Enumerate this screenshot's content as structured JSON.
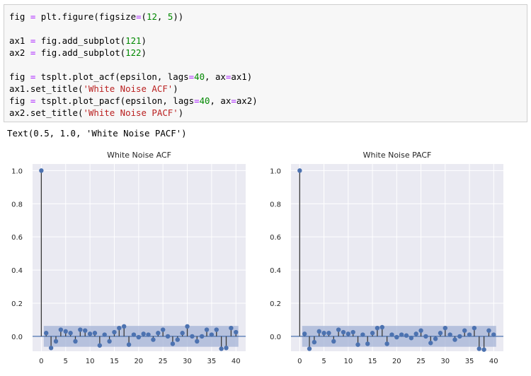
{
  "code_cell": {
    "lines": [
      [
        {
          "t": "fig "
        },
        {
          "t": "=",
          "c": "op"
        },
        {
          "t": " plt.figure(figsize"
        },
        {
          "t": "=",
          "c": "op"
        },
        {
          "t": "("
        },
        {
          "t": "12",
          "c": "num"
        },
        {
          "t": ", "
        },
        {
          "t": "5",
          "c": "num"
        },
        {
          "t": "))"
        }
      ],
      [],
      [
        {
          "t": "ax1 "
        },
        {
          "t": "=",
          "c": "op"
        },
        {
          "t": " fig.add_subplot("
        },
        {
          "t": "121",
          "c": "num"
        },
        {
          "t": ")"
        }
      ],
      [
        {
          "t": "ax2 "
        },
        {
          "t": "=",
          "c": "op"
        },
        {
          "t": " fig.add_subplot("
        },
        {
          "t": "122",
          "c": "num"
        },
        {
          "t": ")"
        }
      ],
      [],
      [
        {
          "t": "fig "
        },
        {
          "t": "=",
          "c": "op"
        },
        {
          "t": " tsplt.plot_acf(epsilon, lags"
        },
        {
          "t": "=",
          "c": "op"
        },
        {
          "t": "40",
          "c": "num"
        },
        {
          "t": ", ax"
        },
        {
          "t": "=",
          "c": "op"
        },
        {
          "t": "ax1)"
        }
      ],
      [
        {
          "t": "ax1.set_title("
        },
        {
          "t": "'White Noise ACF'",
          "c": "str"
        },
        {
          "t": ")"
        }
      ],
      [
        {
          "t": "fig "
        },
        {
          "t": "=",
          "c": "op"
        },
        {
          "t": " tsplt.plot_pacf(epsilon, lags"
        },
        {
          "t": "=",
          "c": "op"
        },
        {
          "t": "40",
          "c": "num"
        },
        {
          "t": ", ax"
        },
        {
          "t": "=",
          "c": "op"
        },
        {
          "t": "ax2)"
        }
      ],
      [
        {
          "t": "ax2.set_title("
        },
        {
          "t": "'White Noise PACF'",
          "c": "str"
        },
        {
          "t": ")"
        }
      ]
    ]
  },
  "output": {
    "text": "Text(0.5, 1.0, 'White Noise PACF')"
  },
  "colors": {
    "axes_bg": "#eaeaf2",
    "grid": "#ffffff",
    "marker": "#4c72b0",
    "stem": "#3a3a3a",
    "band": "#a4b3d6",
    "zero_line": "#4c72b0"
  },
  "chart_data": [
    {
      "type": "scatter",
      "title": "White Noise ACF",
      "xlabel": "",
      "ylabel": "",
      "x_ticks": [
        0,
        5,
        10,
        15,
        20,
        25,
        30,
        35,
        40
      ],
      "y_ticks": [
        "0.0",
        "0.2",
        "0.4",
        "0.6",
        "0.8",
        "1.0"
      ],
      "xlim": [
        -1.8,
        42
      ],
      "ylim": [
        -0.09,
        1.04
      ],
      "grid": true,
      "confidence_band": 0.063,
      "lags": [
        0,
        1,
        2,
        3,
        4,
        5,
        6,
        7,
        8,
        9,
        10,
        11,
        12,
        13,
        14,
        15,
        16,
        17,
        18,
        19,
        20,
        21,
        22,
        23,
        24,
        25,
        26,
        27,
        28,
        29,
        30,
        31,
        32,
        33,
        34,
        35,
        36,
        37,
        38,
        39,
        40
      ],
      "values": [
        1.0,
        0.02,
        -0.07,
        -0.03,
        0.04,
        0.03,
        0.02,
        -0.03,
        0.04,
        0.035,
        0.015,
        0.02,
        -0.055,
        0.01,
        -0.03,
        0.025,
        0.05,
        0.06,
        -0.05,
        0.01,
        -0.005,
        0.015,
        0.01,
        -0.02,
        0.02,
        0.04,
        0.0,
        -0.045,
        -0.02,
        0.02,
        0.06,
        0.0,
        -0.03,
        0.0,
        0.04,
        0.01,
        0.04,
        -0.075,
        -0.07,
        0.05,
        0.025
      ]
    },
    {
      "type": "scatter",
      "title": "White Noise PACF",
      "xlabel": "",
      "ylabel": "",
      "x_ticks": [
        0,
        5,
        10,
        15,
        20,
        25,
        30,
        35,
        40
      ],
      "y_ticks": [
        "0.0",
        "0.2",
        "0.4",
        "0.6",
        "0.8",
        "1.0"
      ],
      "xlim": [
        -1.8,
        42
      ],
      "ylim": [
        -0.09,
        1.04
      ],
      "grid": true,
      "confidence_band": 0.063,
      "lags": [
        0,
        1,
        2,
        3,
        4,
        5,
        6,
        7,
        8,
        9,
        10,
        11,
        12,
        13,
        14,
        15,
        16,
        17,
        18,
        19,
        20,
        21,
        22,
        23,
        24,
        25,
        26,
        27,
        28,
        29,
        30,
        31,
        32,
        33,
        34,
        35,
        36,
        37,
        38,
        39,
        40
      ],
      "values": [
        1.0,
        0.015,
        -0.075,
        -0.035,
        0.03,
        0.02,
        0.02,
        -0.03,
        0.04,
        0.025,
        0.015,
        0.025,
        -0.05,
        0.01,
        -0.045,
        0.02,
        0.05,
        0.055,
        -0.045,
        0.01,
        -0.005,
        0.01,
        0.005,
        -0.01,
        0.015,
        0.035,
        0.0,
        -0.04,
        -0.015,
        0.02,
        0.05,
        0.01,
        -0.02,
        0.0,
        0.035,
        0.01,
        0.05,
        -0.075,
        -0.08,
        0.035,
        0.01
      ]
    }
  ]
}
